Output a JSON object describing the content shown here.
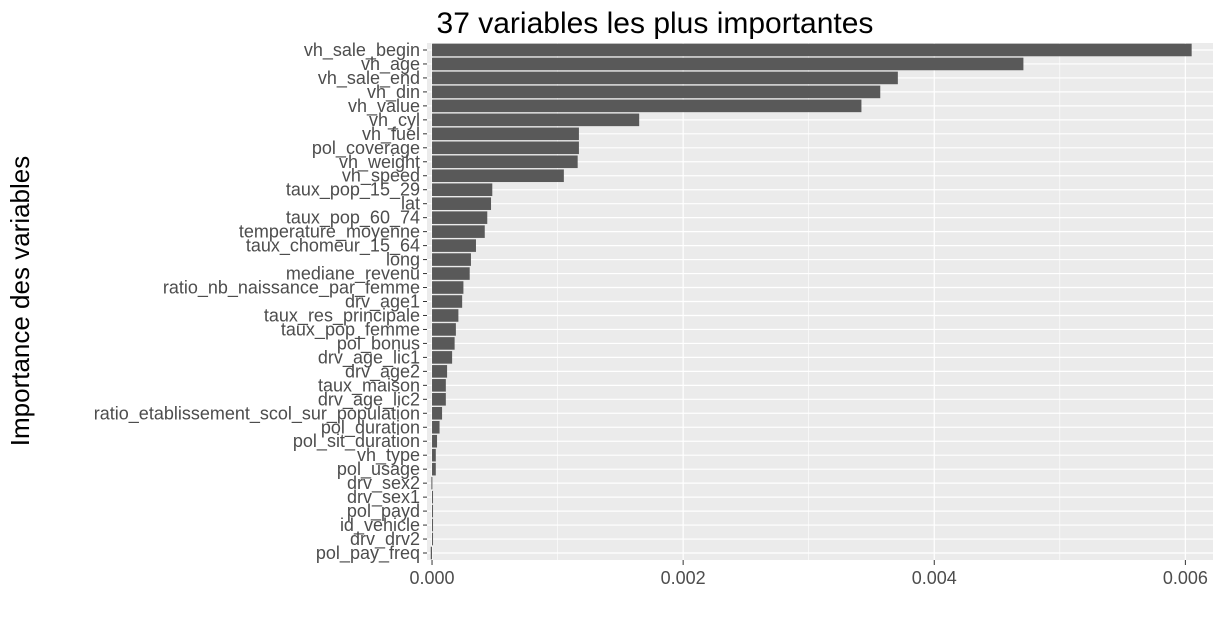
{
  "chart_data": {
    "type": "bar",
    "orientation": "horizontal",
    "title": "37 variables les plus importantes",
    "xlabel": "",
    "ylabel": "Importance des variables",
    "xlim": [
      -4e-05,
      0.00622
    ],
    "xticks": [
      "0.000",
      "0.002",
      "0.004",
      "0.006"
    ],
    "xtick_values": [
      0,
      0.002,
      0.004,
      0.006
    ],
    "grid": true,
    "legend": "none",
    "colors": {
      "bar": "#595959",
      "panel": "#ebebeb",
      "grid": "#ffffff"
    },
    "categories": [
      "vh_sale_begin",
      "vh_age",
      "vh_sale_end",
      "vh_din",
      "vh_value",
      "vh_cyl",
      "vh_fuel",
      "pol_coverage",
      "vh_weight",
      "vh_speed",
      "taux_pop_15_29",
      "lat",
      "taux_pop_60_74",
      "temperature_moyenne",
      "taux_chomeur_15_64",
      "long",
      "mediane_revenu",
      "ratio_nb_naissance_par_femme",
      "drv_age1",
      "taux_res_principale",
      "taux_pop_femme",
      "pol_bonus",
      "drv_age_lic1",
      "drv_age2",
      "taux_maison",
      "drv_age_lic2",
      "ratio_etablissement_scol_sur_population",
      "pol_duration",
      "pol_sit_duration",
      "vh_type",
      "pol_usage",
      "drv_sex2",
      "drv_sex1",
      "pol_payd",
      "id_vehicle",
      "drv_drv2",
      "pol_pay_freq"
    ],
    "values": [
      0.00605,
      0.00471,
      0.00371,
      0.00357,
      0.00342,
      0.00165,
      0.00117,
      0.00117,
      0.00116,
      0.00105,
      0.00048,
      0.00047,
      0.00044,
      0.00042,
      0.00035,
      0.00031,
      0.0003,
      0.00025,
      0.00024,
      0.00021,
      0.00019,
      0.00018,
      0.00016,
      0.00012,
      0.00011,
      0.00011,
      8e-05,
      6e-05,
      4e-05,
      3e-05,
      3e-05,
      -5e-06,
      0.0,
      0.0,
      0.0,
      0.0,
      -1e-05
    ]
  }
}
